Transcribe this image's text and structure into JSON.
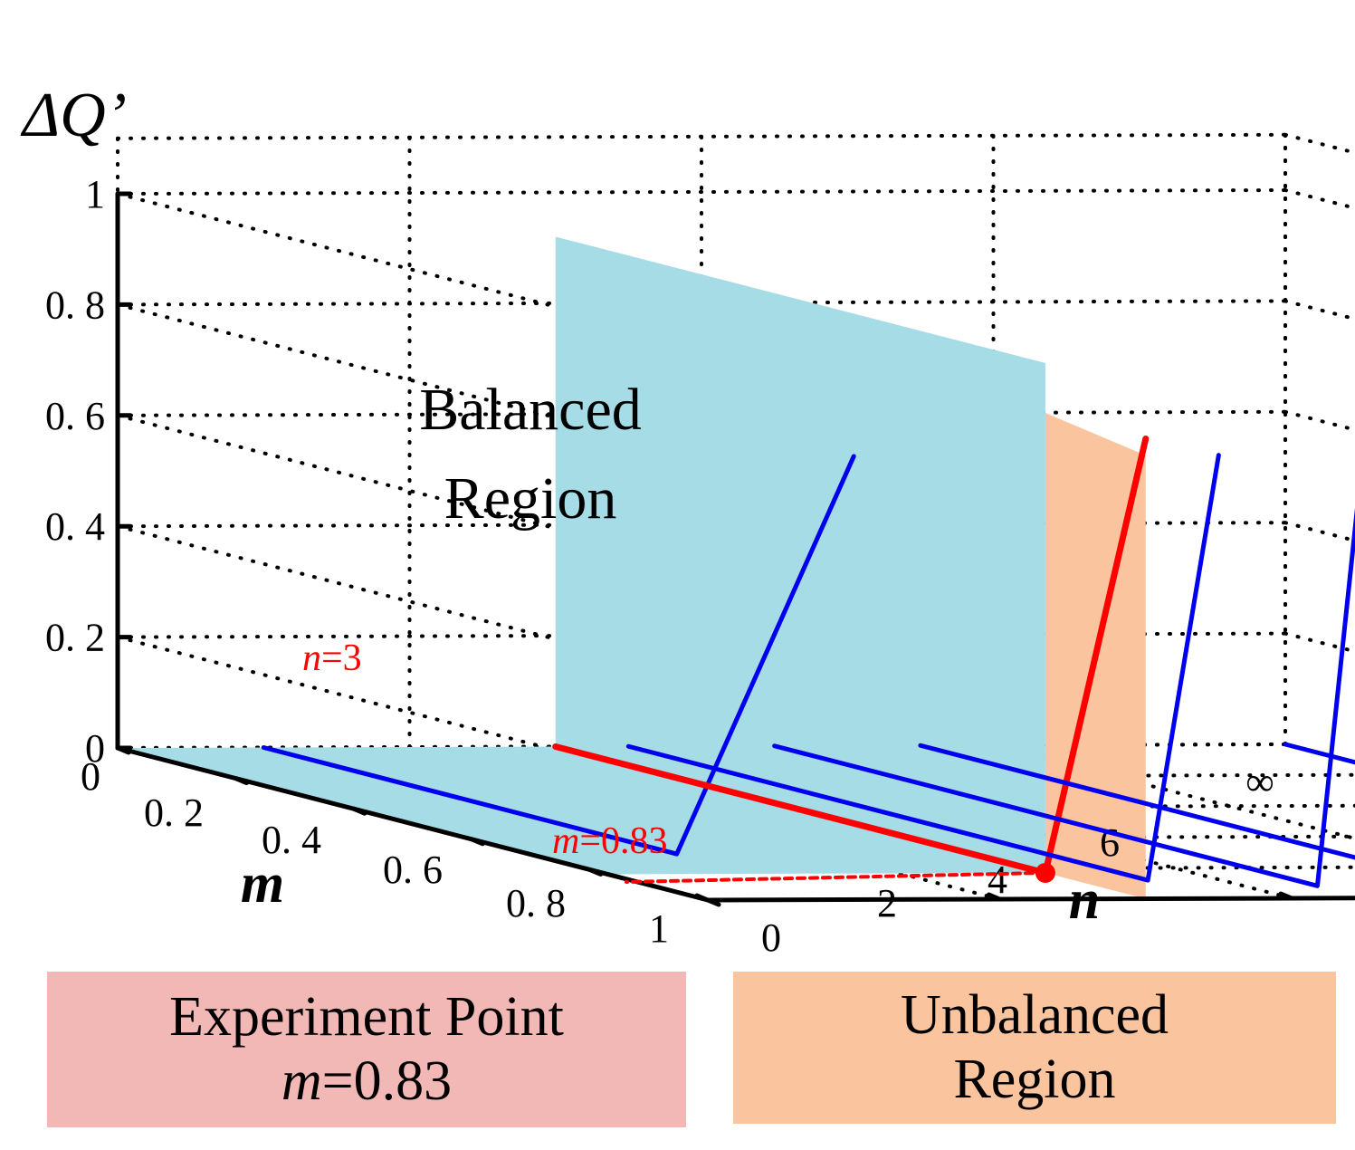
{
  "chart_data": {
    "type": "line",
    "title": "",
    "axes": {
      "z": {
        "label": "ΔQ’",
        "ticks": [
          "0",
          "0. 2",
          "0. 4",
          "0. 6",
          "0. 8",
          "1"
        ],
        "range": [
          0,
          1
        ]
      },
      "m": {
        "label": "m",
        "ticks": [
          "0",
          "0. 2",
          "0. 4",
          "0. 6",
          "0. 8",
          "1"
        ],
        "range": [
          0,
          1
        ]
      },
      "n": {
        "label": "n",
        "ticks": [
          "0",
          "2",
          "4",
          "6",
          "∞"
        ],
        "range": [
          0,
          8
        ]
      }
    },
    "grid": true,
    "regions": [
      {
        "name": "balanced",
        "label_line1": "Balanced",
        "label_line2": "Region",
        "color": "#a6dce6"
      },
      {
        "name": "unbalanced",
        "color": "#f9c49e"
      }
    ],
    "curves_color": "#0000ee",
    "highlight_color": "#ff0000",
    "curves": [
      {
        "n": 1,
        "m_end": 0.7,
        "peak": 0.8
      },
      {
        "n": 3,
        "m_end": 0.83,
        "peak": 0.83,
        "highlight": true
      },
      {
        "n": 3.5,
        "m_end": 0.88,
        "peak": 0.8
      },
      {
        "n": 4.5,
        "m_end": 0.92,
        "peak": 0.83
      },
      {
        "n": 5.5,
        "m_end": 0.95,
        "peak": 0.86
      },
      {
        "n": 8,
        "m_end": 1.0,
        "peak": 0.98
      }
    ],
    "annotations": [
      {
        "name": "n-annotation",
        "italic": "n",
        "text": "=3"
      },
      {
        "name": "m-annotation",
        "italic": "m",
        "text": "=0.83"
      }
    ],
    "experiment_point": {
      "m": 0.83,
      "n": 3
    }
  },
  "legend": {
    "experiment": {
      "line1": "Experiment Point",
      "italic": "m",
      "value": "=0.83",
      "color": "#f2b8b6"
    },
    "unbalanced": {
      "line1": "Unbalanced",
      "line2": "Region",
      "color": "#f9c49e"
    }
  }
}
